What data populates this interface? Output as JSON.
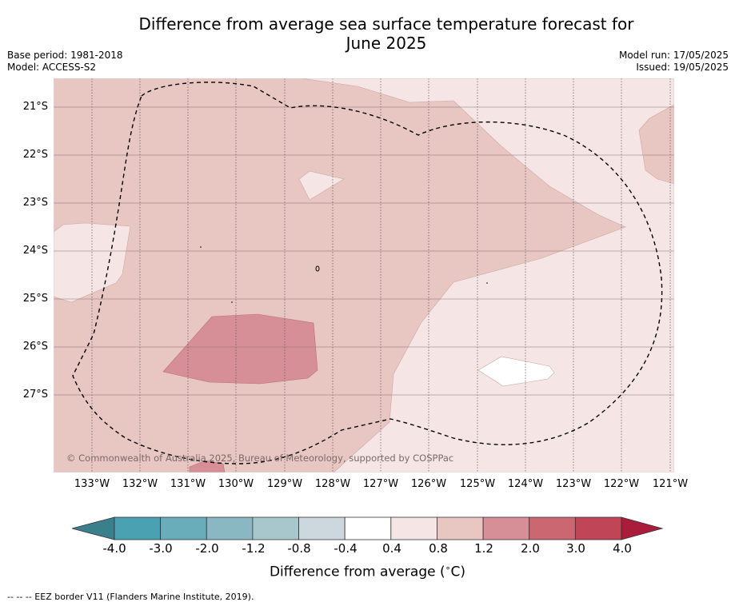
{
  "title": {
    "line1": "Difference from average sea surface temperature forecast for",
    "line2": "June 2025"
  },
  "meta": {
    "base_period": "Base period: 1981-2018",
    "model": "Model: ACCESS-S2",
    "model_run": "Model run: 17/05/2025",
    "issued": "Issued: 19/05/2025"
  },
  "map": {
    "longitude_labels": [
      "133°W",
      "132°W",
      "131°W",
      "130°W",
      "129°W",
      "128°W",
      "127°W",
      "126°W",
      "125°W",
      "124°W",
      "123°W",
      "122°W",
      "121°W"
    ],
    "latitude_labels": [
      "21°S",
      "22°S",
      "23°S",
      "24°S",
      "25°S",
      "26°S",
      "27°S"
    ],
    "copyright": "© Commonwealth of Australia 2025, Bureau of Meteorology, supported by COSPPac",
    "colors": {
      "band_0_4_to_0_8": "#f5e6e5",
      "band_0_8_to_1_2": "#e8c6c2",
      "band_1_2_to_2_0": "#d68f97",
      "neutral": "#ffffff"
    }
  },
  "colorbar": {
    "ticks": [
      "-4.0",
      "-3.0",
      "-2.0",
      "-1.2",
      "-0.8",
      "-0.4",
      "0.4",
      "0.8",
      "1.2",
      "2.0",
      "3.0",
      "4.0"
    ],
    "colors": [
      "#3a7f8c",
      "#4aa1b2",
      "#6aadba",
      "#89b7c2",
      "#a8c7cc",
      "#ccd8dd",
      "#ffffff",
      "#f5e6e5",
      "#e8c6c2",
      "#d68f97",
      "#cb6771",
      "#bf4557",
      "#a91d3a"
    ],
    "label": "Difference from average (",
    "unit": "C)",
    "degree": "∘"
  },
  "footnote": "--  --  -- EEZ border V11 (Flanders Marine Institute, 2019)."
}
